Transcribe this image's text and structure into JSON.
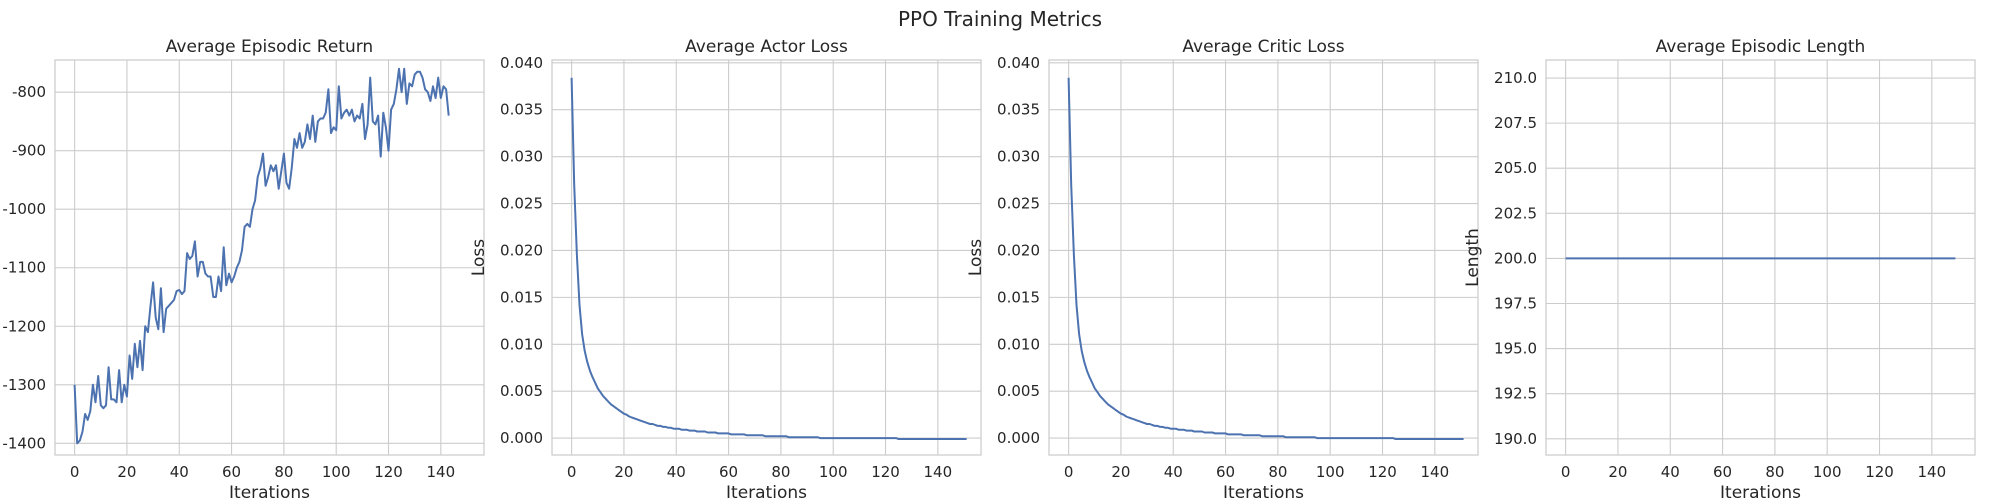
{
  "figure": {
    "title": "PPO Training Metrics"
  },
  "colors": {
    "series": "#4c72b0",
    "grid": "#cccccc",
    "text": "#262626"
  },
  "chart_data": [
    {
      "type": "line",
      "title": "Average Episodic Return",
      "xlabel": "Iterations",
      "ylabel": "",
      "xlim": [
        -7.5,
        156.5
      ],
      "ylim": [
        -1420,
        -745
      ],
      "xticks": [
        0,
        20,
        40,
        60,
        80,
        100,
        120,
        140
      ],
      "yticks": [
        -1400,
        -1300,
        -1200,
        -1100,
        -1000,
        -900,
        -800
      ],
      "ytick_labels": [
        "-1400",
        "-1300",
        "-1200",
        "-1100",
        "-1000",
        "-900",
        "-800"
      ],
      "grid": true,
      "series": [
        {
          "values": [
            -1300,
            -1400,
            -1395,
            -1380,
            -1350,
            -1360,
            -1345,
            -1300,
            -1330,
            -1285,
            -1335,
            -1340,
            -1335,
            -1270,
            -1325,
            -1325,
            -1330,
            -1275,
            -1330,
            -1300,
            -1320,
            -1250,
            -1290,
            -1230,
            -1270,
            -1225,
            -1275,
            -1200,
            -1210,
            -1165,
            -1125,
            -1185,
            -1205,
            -1135,
            -1210,
            -1170,
            -1165,
            -1160,
            -1155,
            -1140,
            -1138,
            -1145,
            -1140,
            -1075,
            -1085,
            -1080,
            -1055,
            -1115,
            -1090,
            -1090,
            -1110,
            -1115,
            -1115,
            -1150,
            -1150,
            -1115,
            -1140,
            -1065,
            -1130,
            -1110,
            -1125,
            -1115,
            -1100,
            -1090,
            -1070,
            -1030,
            -1025,
            -1030,
            -1000,
            -985,
            -945,
            -930,
            -905,
            -960,
            -945,
            -925,
            -935,
            -925,
            -965,
            -935,
            -905,
            -955,
            -965,
            -930,
            -880,
            -895,
            -870,
            -895,
            -885,
            -855,
            -880,
            -840,
            -885,
            -850,
            -845,
            -845,
            -835,
            -795,
            -870,
            -860,
            -865,
            -790,
            -845,
            -835,
            -830,
            -840,
            -830,
            -850,
            -840,
            -845,
            -820,
            -880,
            -855,
            -775,
            -850,
            -855,
            -840,
            -910,
            -835,
            -860,
            -900,
            -830,
            -820,
            -795,
            -760,
            -800,
            -760,
            -820,
            -785,
            -790,
            -770,
            -765,
            -765,
            -775,
            -795,
            -800,
            -815,
            -790,
            -810,
            -775,
            -810,
            -790,
            -795,
            -840
          ]
        }
      ]
    },
    {
      "type": "line",
      "title": "Average Actor Loss",
      "xlabel": "Iterations",
      "ylabel": "Loss",
      "xlim": [
        -7.5,
        156.5
      ],
      "ylim": [
        -0.0018,
        0.0403
      ],
      "xticks": [
        0,
        20,
        40,
        60,
        80,
        100,
        120,
        140
      ],
      "yticks": [
        0.0,
        0.005,
        0.01,
        0.015,
        0.02,
        0.025,
        0.03,
        0.035,
        0.04
      ],
      "ytick_labels": [
        "0.000",
        "0.005",
        "0.010",
        "0.015",
        "0.020",
        "0.025",
        "0.030",
        "0.035",
        "0.040"
      ],
      "grid": true,
      "series": [
        {
          "values": [
            0.0384,
            0.027,
            0.0195,
            0.0142,
            0.0111,
            0.0093,
            0.0081,
            0.0072,
            0.0065,
            0.0059,
            0.0053,
            0.0049,
            0.0045,
            0.0042,
            0.0039,
            0.0036,
            0.0034,
            0.0032,
            0.003,
            0.0028,
            0.0026,
            0.0025,
            0.0023,
            0.0022,
            0.0021,
            0.002,
            0.0019,
            0.0018,
            0.0017,
            0.0016,
            0.0015,
            0.0015,
            0.0014,
            0.0013,
            0.0013,
            0.0012,
            0.0012,
            0.0011,
            0.0011,
            0.001,
            0.001,
            0.001,
            0.0009,
            0.0009,
            0.0009,
            0.0008,
            0.0008,
            0.0008,
            0.0007,
            0.0007,
            0.0007,
            0.0007,
            0.0006,
            0.0006,
            0.0006,
            0.0006,
            0.0005,
            0.0005,
            0.0005,
            0.0005,
            0.0005,
            0.0004,
            0.0004,
            0.0004,
            0.0004,
            0.0004,
            0.0004,
            0.0003,
            0.0003,
            0.0003,
            0.0003,
            0.0003,
            0.0003,
            0.0003,
            0.0002,
            0.0002,
            0.0002,
            0.0002,
            0.0002,
            0.0002,
            0.0002,
            0.0002,
            0.0002,
            0.0001,
            0.0001,
            0.0001,
            0.0001,
            0.0001,
            0.0001,
            0.0001,
            0.0001,
            0.0001,
            0.0001,
            0.0001,
            0.0001,
            0.0,
            0.0,
            0.0,
            0.0,
            0.0,
            0.0,
            0.0,
            0.0,
            0.0,
            0.0,
            0.0,
            0.0,
            0.0,
            0.0,
            0.0,
            0.0,
            0.0,
            0.0,
            0.0,
            0.0,
            0.0,
            0.0,
            0.0,
            0.0,
            0.0,
            0.0,
            0.0,
            0.0,
            0.0,
            0.0,
            -0.0001,
            -0.0001,
            -0.0001,
            -0.0001,
            -0.0001,
            -0.0001,
            -0.0001,
            -0.0001,
            -0.0001,
            -0.0001,
            -0.0001,
            -0.0001,
            -0.0001,
            -0.0001,
            -0.0001,
            -0.0001,
            -0.0001,
            -0.0001,
            -0.0001,
            -0.0001,
            -0.0001,
            -0.0001,
            -0.0001,
            -0.0001,
            -0.0001,
            -0.0001,
            -0.0001
          ]
        }
      ]
    },
    {
      "type": "line",
      "title": "Average Critic Loss",
      "xlabel": "Iterations",
      "ylabel": "Loss",
      "xlim": [
        -7.5,
        156.5
      ],
      "ylim": [
        -0.0018,
        0.0403
      ],
      "xticks": [
        0,
        20,
        40,
        60,
        80,
        100,
        120,
        140
      ],
      "yticks": [
        0.0,
        0.005,
        0.01,
        0.015,
        0.02,
        0.025,
        0.03,
        0.035,
        0.04
      ],
      "ytick_labels": [
        "0.000",
        "0.005",
        "0.010",
        "0.015",
        "0.020",
        "0.025",
        "0.030",
        "0.035",
        "0.040"
      ],
      "grid": true,
      "series": [
        {
          "values": [
            0.0384,
            0.027,
            0.0195,
            0.0142,
            0.0111,
            0.0093,
            0.0081,
            0.0072,
            0.0065,
            0.0059,
            0.0053,
            0.0049,
            0.0045,
            0.0042,
            0.0039,
            0.0036,
            0.0034,
            0.0032,
            0.003,
            0.0028,
            0.0026,
            0.0025,
            0.0023,
            0.0022,
            0.0021,
            0.002,
            0.0019,
            0.0018,
            0.0017,
            0.0016,
            0.0015,
            0.0015,
            0.0014,
            0.0013,
            0.0013,
            0.0012,
            0.0012,
            0.0011,
            0.0011,
            0.001,
            0.001,
            0.001,
            0.0009,
            0.0009,
            0.0009,
            0.0008,
            0.0008,
            0.0008,
            0.0007,
            0.0007,
            0.0007,
            0.0007,
            0.0006,
            0.0006,
            0.0006,
            0.0006,
            0.0005,
            0.0005,
            0.0005,
            0.0005,
            0.0005,
            0.0004,
            0.0004,
            0.0004,
            0.0004,
            0.0004,
            0.0004,
            0.0003,
            0.0003,
            0.0003,
            0.0003,
            0.0003,
            0.0003,
            0.0003,
            0.0002,
            0.0002,
            0.0002,
            0.0002,
            0.0002,
            0.0002,
            0.0002,
            0.0002,
            0.0002,
            0.0001,
            0.0001,
            0.0001,
            0.0001,
            0.0001,
            0.0001,
            0.0001,
            0.0001,
            0.0001,
            0.0001,
            0.0001,
            0.0001,
            0.0,
            0.0,
            0.0,
            0.0,
            0.0,
            0.0,
            0.0,
            0.0,
            0.0,
            0.0,
            0.0,
            0.0,
            0.0,
            0.0,
            0.0,
            0.0,
            0.0,
            0.0,
            0.0,
            0.0,
            0.0,
            0.0,
            0.0,
            0.0,
            0.0,
            0.0,
            0.0,
            0.0,
            0.0,
            0.0,
            -0.0001,
            -0.0001,
            -0.0001,
            -0.0001,
            -0.0001,
            -0.0001,
            -0.0001,
            -0.0001,
            -0.0001,
            -0.0001,
            -0.0001,
            -0.0001,
            -0.0001,
            -0.0001,
            -0.0001,
            -0.0001,
            -0.0001,
            -0.0001,
            -0.0001,
            -0.0001,
            -0.0001,
            -0.0001,
            -0.0001,
            -0.0001,
            -0.0001,
            -0.0001,
            -0.0001
          ]
        }
      ]
    },
    {
      "type": "line",
      "title": "Average Episodic Length",
      "xlabel": "Iterations",
      "ylabel": "Length",
      "xlim": [
        -7.5,
        156.5
      ],
      "ylim": [
        189.1,
        211.0
      ],
      "xticks": [
        0,
        20,
        40,
        60,
        80,
        100,
        120,
        140
      ],
      "yticks": [
        190.0,
        192.5,
        195.0,
        197.5,
        200.0,
        202.5,
        205.0,
        207.5,
        210.0
      ],
      "ytick_labels": [
        "190.0",
        "192.5",
        "195.0",
        "197.5",
        "200.0",
        "202.5",
        "205.0",
        "207.5",
        "210.0"
      ],
      "grid": true,
      "series": [
        {
          "x": [
            0,
            149
          ],
          "values": [
            200,
            200
          ]
        }
      ]
    }
  ]
}
